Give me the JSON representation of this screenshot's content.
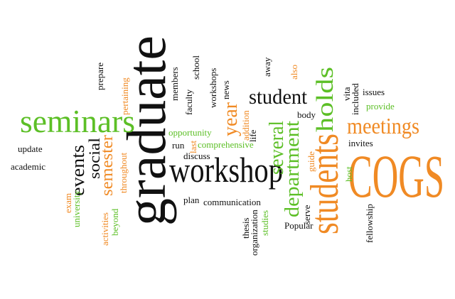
{
  "words": [
    "graduate",
    "workshop",
    "seminars",
    "COGS",
    "students",
    "student",
    "holds",
    "meetings",
    "semester",
    "social",
    "events",
    "department",
    "several",
    "year",
    "update",
    "academic",
    "exam",
    "university",
    "activities",
    "beyond",
    "throughout",
    "pertaining",
    "prepare",
    "members",
    "faculty",
    "school",
    "workshops",
    "news",
    "addition",
    "life",
    "away",
    "also",
    "opportunity",
    "comprehensive",
    "last",
    "run",
    "discuss",
    "plan",
    "communication",
    "thesis",
    "organization",
    "studies",
    "serve",
    "Popular",
    "guide",
    "body",
    "vita",
    "included",
    "issues",
    "provide",
    "invites",
    "host",
    "fellowship"
  ]
}
